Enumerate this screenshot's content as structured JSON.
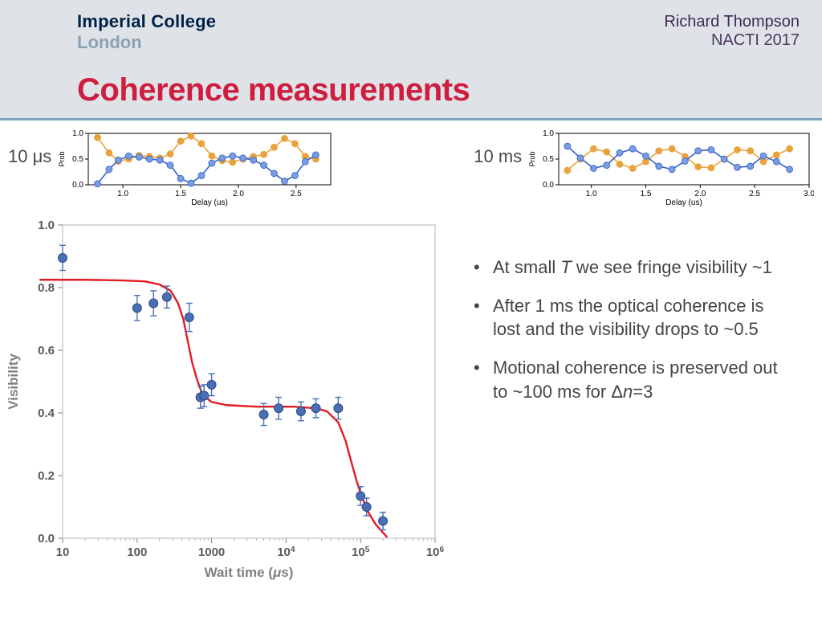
{
  "header": {
    "logo_line1": "Imperial College",
    "logo_line2": "London",
    "author_line1": "Richard Thompson",
    "author_line2": "NACTI 2017",
    "title": "Coherence measurements",
    "logo_color1": "#002147",
    "logo_color2": "#8aa2b2",
    "title_color": "#ce1d3f",
    "bg_color": "#dfe3e8",
    "rule_color": "#7aa3b8"
  },
  "mini_charts": {
    "left": {
      "label": "10 μs",
      "xlabel": "Delay (us)",
      "ylabel": "Prob",
      "xlim": [
        0.7,
        2.8
      ],
      "ylim": [
        0.0,
        1.0
      ],
      "xticks": [
        1.0,
        1.5,
        2.0,
        2.5
      ],
      "yticks": [
        0.0,
        0.5,
        1.0
      ],
      "series": [
        {
          "name": "orange",
          "color": "#e8a33d",
          "line_width": 1.6,
          "marker": "circle",
          "marker_size": 4,
          "x": [
            0.78,
            0.88,
            0.96,
            1.05,
            1.14,
            1.23,
            1.32,
            1.41,
            1.5,
            1.59,
            1.68,
            1.77,
            1.86,
            1.95,
            2.04,
            2.13,
            2.22,
            2.31,
            2.4,
            2.49,
            2.58,
            2.67
          ],
          "y": [
            0.92,
            0.62,
            0.46,
            0.5,
            0.57,
            0.55,
            0.52,
            0.6,
            0.85,
            0.95,
            0.8,
            0.56,
            0.47,
            0.44,
            0.5,
            0.55,
            0.59,
            0.73,
            0.9,
            0.8,
            0.55,
            0.5
          ]
        },
        {
          "name": "blue",
          "color": "#3062c9",
          "line_width": 1.6,
          "marker": "circle",
          "marker_size": 4,
          "marker_color": "#7b9ce0",
          "x": [
            0.78,
            0.88,
            0.96,
            1.05,
            1.14,
            1.23,
            1.32,
            1.41,
            1.5,
            1.59,
            1.68,
            1.77,
            1.86,
            1.95,
            2.04,
            2.13,
            2.22,
            2.31,
            2.4,
            2.49,
            2.58,
            2.67
          ],
          "y": [
            0.02,
            0.3,
            0.48,
            0.56,
            0.54,
            0.5,
            0.48,
            0.38,
            0.12,
            0.03,
            0.18,
            0.42,
            0.52,
            0.56,
            0.52,
            0.48,
            0.38,
            0.22,
            0.07,
            0.18,
            0.45,
            0.58
          ]
        }
      ]
    },
    "right": {
      "label": "10 ms",
      "xlabel": "Delay (us)",
      "ylabel": "Prob",
      "xlim": [
        0.7,
        3.0
      ],
      "ylim": [
        0.0,
        1.0
      ],
      "xticks": [
        1.0,
        1.5,
        2.0,
        2.5,
        3.0
      ],
      "yticks": [
        0.0,
        0.5,
        1.0
      ],
      "series": [
        {
          "name": "orange",
          "color": "#e8a33d",
          "line_width": 1.6,
          "marker": "circle",
          "marker_size": 4,
          "x": [
            0.78,
            0.9,
            1.02,
            1.14,
            1.26,
            1.38,
            1.5,
            1.62,
            1.74,
            1.86,
            1.98,
            2.1,
            2.22,
            2.34,
            2.46,
            2.58,
            2.7,
            2.82
          ],
          "y": [
            0.28,
            0.5,
            0.7,
            0.64,
            0.4,
            0.32,
            0.45,
            0.66,
            0.7,
            0.55,
            0.35,
            0.33,
            0.5,
            0.68,
            0.66,
            0.45,
            0.58,
            0.7
          ]
        },
        {
          "name": "blue",
          "color": "#3062c9",
          "line_width": 1.6,
          "marker": "circle",
          "marker_size": 4,
          "marker_color": "#7b9ce0",
          "x": [
            0.78,
            0.9,
            1.02,
            1.14,
            1.26,
            1.38,
            1.5,
            1.62,
            1.74,
            1.86,
            1.98,
            2.1,
            2.22,
            2.34,
            2.46,
            2.58,
            2.7,
            2.82
          ],
          "y": [
            0.75,
            0.52,
            0.32,
            0.38,
            0.62,
            0.7,
            0.56,
            0.36,
            0.3,
            0.46,
            0.66,
            0.68,
            0.5,
            0.34,
            0.36,
            0.56,
            0.45,
            0.3
          ]
        }
      ]
    },
    "axis_font_size": 10,
    "frame_color": "#000000",
    "bg": "#ffffff"
  },
  "main_chart": {
    "type": "scatter+line",
    "xlabel": "Wait time (μs)",
    "ylabel": "Visibility",
    "xlim_log": [
      1,
      6
    ],
    "ylim": [
      0.0,
      1.0
    ],
    "yticks": [
      0.0,
      0.2,
      0.4,
      0.6,
      0.8,
      1.0
    ],
    "xticks_log": [
      1,
      2,
      3,
      4,
      5,
      6
    ],
    "xtick_labels": [
      "10",
      "100",
      "1000",
      "10^4",
      "10^5",
      "10^6"
    ],
    "frame_color": "#b5b5b5",
    "axis_label_color": "#808080",
    "tick_color": "#595959",
    "label_font_size": 17,
    "tick_font_size": 15,
    "points": {
      "color": "#4b6fb3",
      "border": "#2a4a8c",
      "radius": 5.5,
      "errbar_color": "#4b6fb3",
      "x_log": [
        1.0,
        2.0,
        2.22,
        2.4,
        2.7,
        2.85,
        2.9,
        3.0,
        3.7,
        3.9,
        4.2,
        4.4,
        4.7,
        5.0,
        5.08,
        5.3
      ],
      "y": [
        0.895,
        0.735,
        0.75,
        0.77,
        0.705,
        0.45,
        0.455,
        0.49,
        0.395,
        0.415,
        0.405,
        0.415,
        0.415,
        0.135,
        0.1,
        0.055
      ],
      "yerr": [
        0.04,
        0.04,
        0.04,
        0.035,
        0.045,
        0.035,
        0.035,
        0.035,
        0.035,
        0.035,
        0.03,
        0.03,
        0.035,
        0.03,
        0.028,
        0.028
      ]
    },
    "fit": {
      "color": "#e31b23",
      "width": 2.4,
      "x_log": [
        0.7,
        1.3,
        1.8,
        2.1,
        2.3,
        2.45,
        2.55,
        2.62,
        2.68,
        2.74,
        2.8,
        2.86,
        2.92,
        3.0,
        3.2,
        3.6,
        4.1,
        4.4,
        4.55,
        4.7,
        4.8,
        4.88,
        4.95,
        5.02,
        5.1,
        5.2,
        5.35
      ],
      "y": [
        0.825,
        0.825,
        0.823,
        0.82,
        0.81,
        0.79,
        0.75,
        0.7,
        0.63,
        0.56,
        0.51,
        0.47,
        0.45,
        0.435,
        0.425,
        0.42,
        0.42,
        0.415,
        0.405,
        0.37,
        0.31,
        0.24,
        0.18,
        0.13,
        0.085,
        0.045,
        0.005
      ]
    }
  },
  "bullets": {
    "items": [
      {
        "pre": "At small ",
        "it1": "T",
        "post": " we see fringe visibility ~1"
      },
      {
        "pre": "After 1 ms the optical coherence is lost and the visibility drops to ~0.5",
        "it1": "",
        "post": ""
      },
      {
        "pre": "Motional coherence is preserved out to ~100 ms for Δ",
        "it1": "n",
        "post": "=3"
      }
    ],
    "font_size": 22,
    "text_color": "#454545"
  }
}
